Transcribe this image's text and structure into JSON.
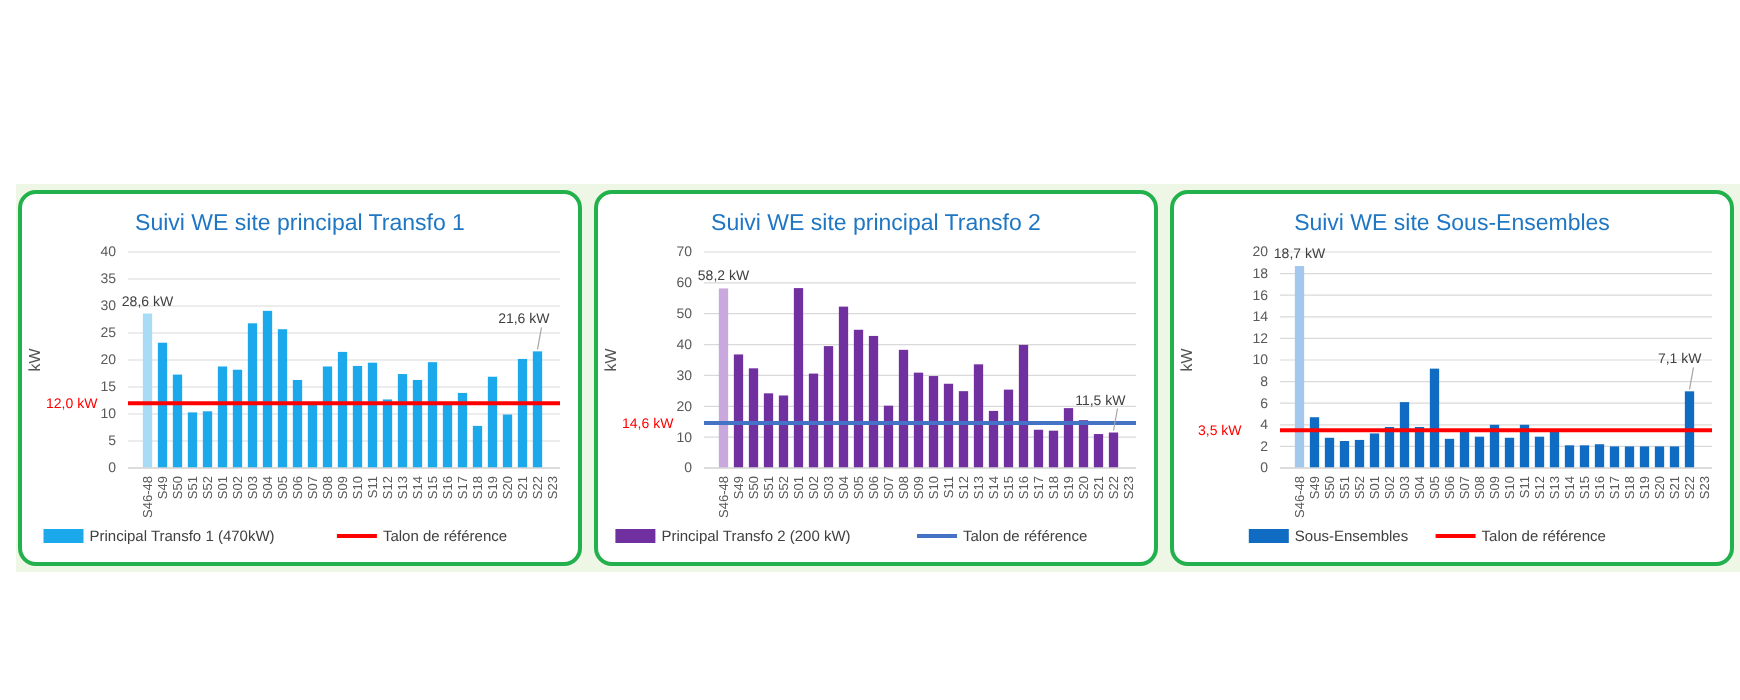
{
  "chart_data": [
    {
      "type": "bar",
      "title": "Suivi WE site principal Transfo 1",
      "ylabel": "kW",
      "categories": [
        "S46-48",
        "S49",
        "S50",
        "S51",
        "S52",
        "S01",
        "S02",
        "S03",
        "S04",
        "S05",
        "S06",
        "S07",
        "S08",
        "S09",
        "S10",
        "S11",
        "S12",
        "S13",
        "S14",
        "S15",
        "S16",
        "S17",
        "S18",
        "S19",
        "S20",
        "S21",
        "S22",
        "S23"
      ],
      "series": [
        {
          "name": "Principal Transfo 1 (470kW)",
          "color": "#1ca9ec",
          "colors": [
            "#a8dbf5",
            "#1ca9ec",
            "#1ca9ec",
            "#1ca9ec",
            "#1ca9ec",
            "#1ca9ec",
            "#1ca9ec",
            "#1ca9ec",
            "#1ca9ec",
            "#1ca9ec",
            "#1ca9ec",
            "#1ca9ec",
            "#1ca9ec",
            "#1ca9ec",
            "#1ca9ec",
            "#1ca9ec",
            "#1ca9ec",
            "#1ca9ec",
            "#1ca9ec",
            "#1ca9ec",
            "#1ca9ec",
            "#1ca9ec",
            "#1ca9ec",
            "#1ca9ec",
            "#1ca9ec",
            "#1ca9ec",
            "#1ca9ec",
            null
          ],
          "values": [
            28.6,
            23.2,
            17.3,
            10.3,
            10.5,
            18.8,
            18.2,
            26.8,
            29.1,
            25.7,
            16.3,
            11.8,
            18.8,
            21.5,
            18.9,
            19.5,
            12.7,
            17.4,
            16.3,
            19.6,
            11.8,
            13.9,
            7.8,
            16.9,
            9.9,
            20.2,
            21.6,
            null
          ],
          "value_labels": [
            "28,6 kW",
            null,
            null,
            null,
            null,
            null,
            null,
            null,
            null,
            null,
            null,
            null,
            null,
            null,
            null,
            null,
            null,
            null,
            null,
            null,
            null,
            null,
            null,
            null,
            null,
            null,
            "21,6 kW",
            null
          ]
        }
      ],
      "ref_lines": [
        {
          "axis": "y",
          "value": 12.0,
          "label": "Talon de référence",
          "color": "#ff0000"
        }
      ],
      "annotations": [
        "12,0 kW"
      ],
      "ylim": [
        0,
        40
      ],
      "yticks": [
        0,
        5,
        10,
        15,
        20,
        25,
        30,
        35,
        40
      ],
      "grid": "y",
      "legend": "bottom"
    },
    {
      "type": "bar",
      "title": "Suivi WE site principal Transfo 2",
      "ylabel": "kW",
      "categories": [
        "S46-48",
        "S49",
        "S50",
        "S51",
        "S52",
        "S01",
        "S02",
        "S03",
        "S04",
        "S05",
        "S06",
        "S07",
        "S08",
        "S09",
        "S10",
        "S11",
        "S12",
        "S13",
        "S14",
        "S15",
        "S16",
        "S17",
        "S18",
        "S19",
        "S20",
        "S21",
        "S22",
        "S23"
      ],
      "series": [
        {
          "name": "Principal Transfo 2 (200 kW)",
          "color": "#7030a0",
          "colors": [
            "#c9a8de",
            "#7030a0",
            "#7030a0",
            "#7030a0",
            "#7030a0",
            "#7030a0",
            "#7030a0",
            "#7030a0",
            "#7030a0",
            "#7030a0",
            "#7030a0",
            "#7030a0",
            "#7030a0",
            "#7030a0",
            "#7030a0",
            "#7030a0",
            "#7030a0",
            "#7030a0",
            "#7030a0",
            "#7030a0",
            "#7030a0",
            "#7030a0",
            "#7030a0",
            "#7030a0",
            "#7030a0",
            "#7030a0",
            "#7030a0",
            null
          ],
          "values": [
            58.2,
            36.8,
            32.3,
            24.2,
            23.5,
            58.3,
            30.6,
            39.5,
            52.3,
            44.8,
            42.8,
            20.2,
            38.3,
            30.9,
            29.8,
            27.3,
            24.9,
            33.6,
            18.5,
            25.4,
            39.9,
            12.4,
            12.1,
            19.4,
            15.5,
            11.0,
            11.5,
            null
          ],
          "value_labels": [
            "58,2 kW",
            null,
            null,
            null,
            null,
            null,
            null,
            null,
            null,
            null,
            null,
            null,
            null,
            null,
            null,
            null,
            null,
            null,
            null,
            null,
            null,
            null,
            null,
            null,
            null,
            null,
            "11,5 kW",
            null
          ]
        }
      ],
      "ref_lines": [
        {
          "axis": "y",
          "value": 14.6,
          "label": "Talon de référence",
          "color": "#4472c4"
        }
      ],
      "annotations": [
        "14,6 kW"
      ],
      "ylim": [
        0,
        70
      ],
      "yticks": [
        0,
        10,
        20,
        30,
        40,
        50,
        60,
        70
      ],
      "grid": "y",
      "legend": "bottom"
    },
    {
      "type": "bar",
      "title": "Suivi WE site Sous-Ensembles",
      "ylabel": "kW",
      "categories": [
        "S46-48",
        "S49",
        "S50",
        "S51",
        "S52",
        "S01",
        "S02",
        "S03",
        "S04",
        "S05",
        "S06",
        "S07",
        "S08",
        "S09",
        "S10",
        "S11",
        "S12",
        "S13",
        "S14",
        "S15",
        "S16",
        "S17",
        "S18",
        "S19",
        "S20",
        "S21",
        "S22",
        "S23"
      ],
      "series": [
        {
          "name": "Sous-Ensembles",
          "color": "#0f6cc2",
          "colors": [
            "#a3c8ee",
            "#0f6cc2",
            "#0f6cc2",
            "#0f6cc2",
            "#0f6cc2",
            "#0f6cc2",
            "#0f6cc2",
            "#0f6cc2",
            "#0f6cc2",
            "#0f6cc2",
            "#0f6cc2",
            "#0f6cc2",
            "#0f6cc2",
            "#0f6cc2",
            "#0f6cc2",
            "#0f6cc2",
            "#0f6cc2",
            "#0f6cc2",
            "#0f6cc2",
            "#0f6cc2",
            "#0f6cc2",
            "#0f6cc2",
            "#0f6cc2",
            "#0f6cc2",
            "#0f6cc2",
            "#0f6cc2",
            "#0f6cc2",
            null
          ],
          "values": [
            18.7,
            4.7,
            2.8,
            2.5,
            2.6,
            3.2,
            3.8,
            6.1,
            3.8,
            9.2,
            2.7,
            3.5,
            2.9,
            4.0,
            2.8,
            4.0,
            2.9,
            3.4,
            2.1,
            2.1,
            2.2,
            2.0,
            2.0,
            2.0,
            2.0,
            2.0,
            7.1,
            null
          ],
          "value_labels": [
            "18,7 kW",
            null,
            null,
            null,
            null,
            null,
            null,
            null,
            null,
            null,
            null,
            null,
            null,
            null,
            null,
            null,
            null,
            null,
            null,
            null,
            null,
            null,
            null,
            null,
            null,
            null,
            "7,1 kW",
            null
          ]
        }
      ],
      "ref_lines": [
        {
          "axis": "y",
          "value": 3.5,
          "label": "Talon de référence",
          "color": "#ff0000"
        }
      ],
      "annotations": [
        "3,5 kW"
      ],
      "ylim": [
        0,
        20
      ],
      "yticks": [
        0,
        2,
        4,
        6,
        8,
        10,
        12,
        14,
        16,
        18,
        20
      ],
      "grid": "y",
      "legend": "bottom"
    }
  ]
}
